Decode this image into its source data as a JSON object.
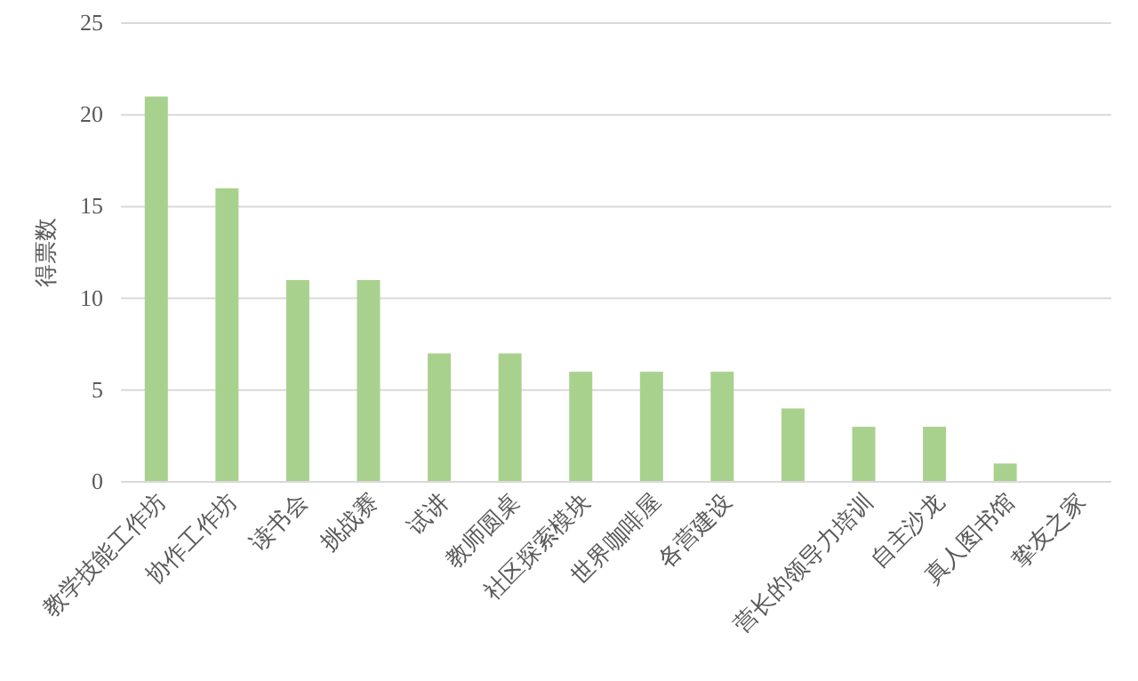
{
  "chart_data": {
    "type": "bar",
    "ylabel": "得票数",
    "categories": [
      "教学技能工作坊",
      "协作工作坊",
      "读书会",
      "挑战赛",
      "试讲",
      "教师圆桌",
      "社区探索模块",
      "世界咖啡屋",
      "各营建设",
      null,
      "营长的领导力培训",
      "自主沙龙",
      "真人图书馆",
      "挚友之家"
    ],
    "values": [
      21,
      16,
      11,
      11,
      7,
      7,
      6,
      6,
      6,
      4,
      3,
      3,
      1,
      0
    ],
    "color": "#a9d18e",
    "ylim": [
      0,
      25
    ],
    "yticks": [
      0,
      5,
      10,
      15,
      20,
      25
    ],
    "grid": "y"
  }
}
